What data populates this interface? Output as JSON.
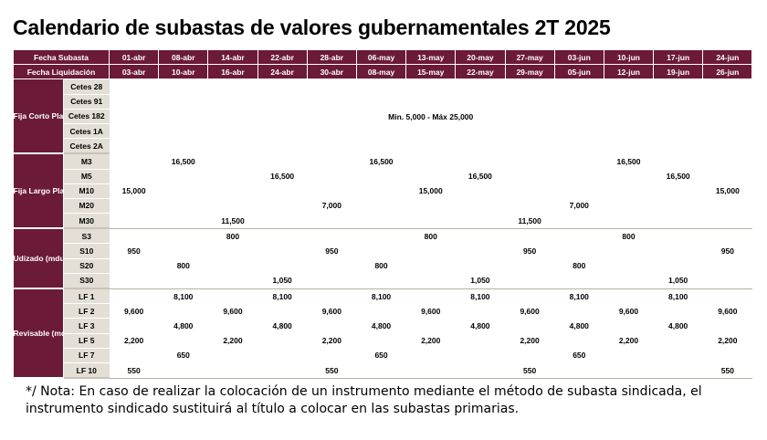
{
  "title": "Calendario de subastas de valores gubernamentales 2T 2025",
  "header": {
    "subasta_label": "Fecha Subasta",
    "liquidacion_label": "Fecha Liquidación",
    "subasta": [
      "01-abr",
      "08-abr",
      "14-abr",
      "22-abr",
      "28-abr",
      "06-may",
      "13-may",
      "20-may",
      "27-may",
      "03-jun",
      "10-jun",
      "17-jun",
      "24-jun"
    ],
    "liquidacion": [
      "03-abr",
      "10-abr",
      "16-abr",
      "24-abr",
      "30-abr",
      "08-may",
      "15-may",
      "22-may",
      "29-may",
      "05-jun",
      "12-jun",
      "19-jun",
      "26-jun"
    ]
  },
  "groups": {
    "cetes": {
      "label": "Fija Corto Plazo (mdp)",
      "instruments": [
        "Cetes 28",
        "Cetes 91",
        "Cetes 182",
        "Cetes 1A",
        "Cetes 2A"
      ],
      "note": "Min. 5,000 - Máx 25,000"
    },
    "fija_largo": {
      "label": "Fija Largo Plazo (mdp)",
      "instruments": [
        "M3",
        "M5",
        "M10",
        "M20",
        "M30"
      ],
      "rows": [
        [
          "",
          "16,500",
          "",
          "",
          "",
          "16,500",
          "",
          "",
          "",
          "",
          "16,500",
          "",
          ""
        ],
        [
          "",
          "",
          "",
          "16,500",
          "",
          "",
          "",
          "16,500",
          "",
          "",
          "",
          "16,500",
          ""
        ],
        [
          "15,000",
          "",
          "",
          "",
          "",
          "",
          "15,000",
          "",
          "",
          "",
          "",
          "",
          "15,000"
        ],
        [
          "",
          "",
          "",
          "",
          "7,000",
          "",
          "",
          "",
          "",
          "7,000",
          "",
          "",
          ""
        ],
        [
          "",
          "",
          "11,500",
          "",
          "",
          "",
          "",
          "",
          "11,500",
          "",
          "",
          "",
          ""
        ]
      ]
    },
    "udizado": {
      "label": "Udizado (mdu)",
      "instruments": [
        "S3",
        "S10",
        "S20",
        "S30"
      ],
      "rows": [
        [
          "",
          "",
          "800",
          "",
          "",
          "",
          "800",
          "",
          "",
          "",
          "800",
          "",
          ""
        ],
        [
          "950",
          "",
          "",
          "",
          "950",
          "",
          "",
          "",
          "950",
          "",
          "",
          "",
          "950"
        ],
        [
          "",
          "800",
          "",
          "",
          "",
          "800",
          "",
          "",
          "",
          "800",
          "",
          "",
          ""
        ],
        [
          "",
          "",
          "",
          "1,050",
          "",
          "",
          "",
          "1,050",
          "",
          "",
          "",
          "1,050",
          ""
        ]
      ]
    },
    "revisable": {
      "label": "Revisable (mdp)",
      "instruments": [
        "LF 1",
        "LF 2",
        "LF 3",
        "LF 5",
        "LF 7",
        "LF 10"
      ],
      "rows": [
        [
          "",
          "8,100",
          "",
          "8,100",
          "",
          "8,100",
          "",
          "8,100",
          "",
          "8,100",
          "",
          "8,100",
          ""
        ],
        [
          "9,600",
          "",
          "9,600",
          "",
          "9,600",
          "",
          "9,600",
          "",
          "9,600",
          "",
          "9,600",
          "",
          "9,600"
        ],
        [
          "",
          "4,800",
          "",
          "4,800",
          "",
          "4,800",
          "",
          "4,800",
          "",
          "4,800",
          "",
          "4,800",
          ""
        ],
        [
          "2,200",
          "",
          "2,200",
          "",
          "2,200",
          "",
          "2,200",
          "",
          "2,200",
          "",
          "2,200",
          "",
          "2,200"
        ],
        [
          "",
          "650",
          "",
          "",
          "",
          "650",
          "",
          "",
          "",
          "650",
          "",
          "",
          ""
        ],
        [
          "550",
          "",
          "",
          "",
          "550",
          "",
          "",
          "",
          "550",
          "",
          "",
          "",
          "550"
        ]
      ]
    }
  },
  "footnote": "*/ Nota: En caso de realizar la colocación de un instrumento mediante el método de subasta sindicada, el instrumento sindicado sustituirá al título a colocar en las subastas primarias."
}
